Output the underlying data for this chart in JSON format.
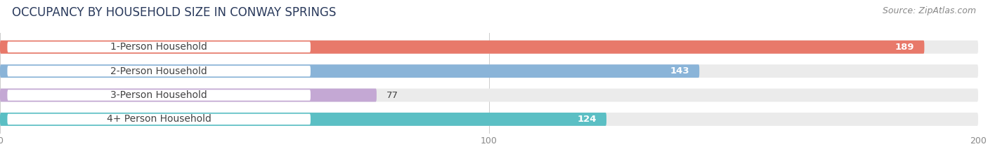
{
  "title": "OCCUPANCY BY HOUSEHOLD SIZE IN CONWAY SPRINGS",
  "source": "Source: ZipAtlas.com",
  "categories": [
    "1-Person Household",
    "2-Person Household",
    "3-Person Household",
    "4+ Person Household"
  ],
  "values": [
    189,
    143,
    77,
    124
  ],
  "bar_colors": [
    "#e8796a",
    "#8ab4d8",
    "#c4a8d4",
    "#5bbfc4"
  ],
  "bar_bg_colors": [
    "#ede8e8",
    "#e2e8f0",
    "#ece5ee",
    "#e0edf0"
  ],
  "xlim": [
    0,
    200
  ],
  "xticks": [
    0,
    100,
    200
  ],
  "label_color": "#444444",
  "title_color": "#2a3a5c",
  "source_color": "#888888",
  "title_fontsize": 12,
  "source_fontsize": 9,
  "label_fontsize": 10,
  "value_fontsize": 9.5,
  "tick_fontsize": 9,
  "bar_height": 0.55,
  "background_color": "#ffffff",
  "bar_bg_color_uniform": "#ebebeb"
}
